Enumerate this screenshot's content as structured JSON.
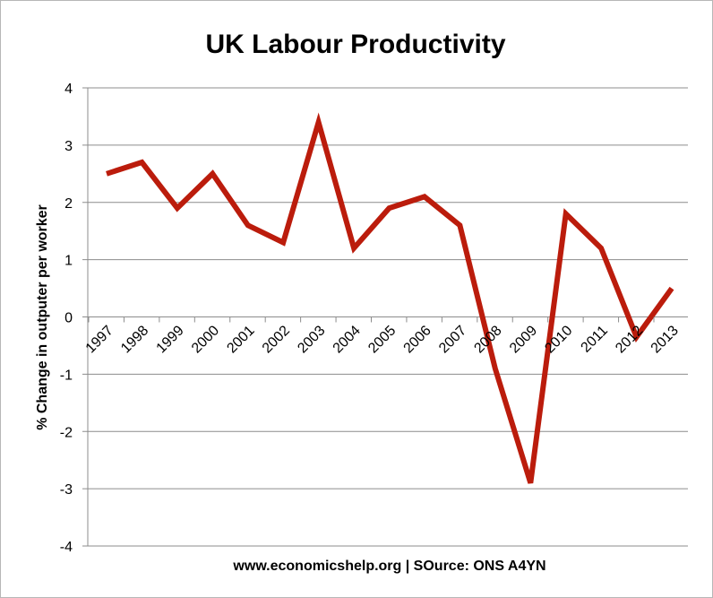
{
  "chart_data": {
    "type": "line",
    "title": "UK Labour Productivity",
    "xlabel": "www.economicshelp.org | SOurce: ONS A4YN",
    "ylabel": "% Change in outputer per worker",
    "ylim": [
      -4,
      4
    ],
    "yticks": [
      "4",
      "3",
      "2",
      "1",
      "0",
      "-1",
      "-2",
      "-3",
      "-4"
    ],
    "grid": true,
    "categories": [
      "1997",
      "1998",
      "1999",
      "2000",
      "2001",
      "2002",
      "2003",
      "2004",
      "2005",
      "2006",
      "2007",
      "2008",
      "2009",
      "2010",
      "2011",
      "2012",
      "2013"
    ],
    "series": [
      {
        "values": [
          2.5,
          2.7,
          1.9,
          2.5,
          1.6,
          1.3,
          3.4,
          1.2,
          1.9,
          2.1,
          1.6,
          -0.9,
          -2.9,
          1.8,
          1.2,
          -0.35,
          0.5
        ],
        "color": "#bb1c0c"
      }
    ]
  }
}
